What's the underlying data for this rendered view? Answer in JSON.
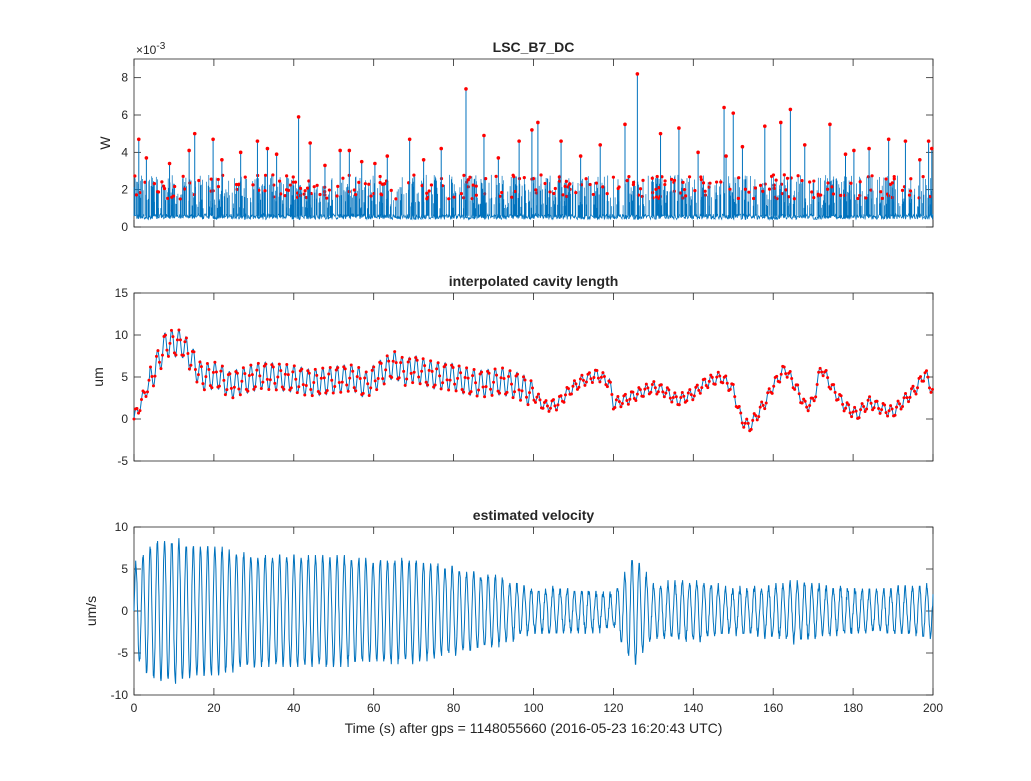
{
  "chart_data": [
    {
      "type": "line",
      "title": "LSC_B7_DC",
      "ylabel": "W",
      "xlabel": "",
      "exponent_label": "×10",
      "exponent_power": "-3",
      "xlim": [
        0,
        200
      ],
      "ylim": [
        0,
        9
      ],
      "yticks": [
        0,
        2,
        4,
        6,
        8
      ],
      "yticklabels": [
        "0",
        "2",
        "4",
        "6",
        "8"
      ],
      "colors": {
        "signal": "#0072BD",
        "peaks": "#FF0000"
      },
      "series": [
        {
          "style": "line",
          "baseline_range": [
            0.4,
            0.7
          ],
          "typical_spike_range": [
            1.0,
            2.8
          ]
        },
        {
          "style": "markers",
          "x": [
            1.2,
            3.1,
            8.9,
            13.8,
            15.2,
            19.8,
            22.0,
            26.7,
            30.9,
            33.4,
            35.7,
            41.2,
            44.1,
            47.8,
            51.6,
            53.9,
            57.0,
            60.3,
            63.4,
            69.0,
            72.5,
            76.9,
            83.1,
            87.6,
            91.2,
            96.4,
            99.6,
            101.1,
            106.9,
            111.8,
            116.7,
            122.9,
            126.0,
            131.8,
            136.4,
            141.2,
            147.7,
            148.2,
            150.0,
            152.3,
            157.9,
            161.9,
            164.3,
            167.9,
            174.2,
            178.1,
            180.2,
            184.0,
            188.9,
            193.1,
            196.7,
            198.9,
            199.7
          ],
          "y": [
            4.7,
            3.7,
            3.4,
            4.1,
            5.0,
            4.7,
            3.6,
            4.0,
            4.6,
            4.2,
            3.9,
            5.9,
            4.5,
            3.3,
            4.1,
            4.1,
            3.5,
            3.4,
            3.8,
            4.7,
            3.6,
            4.2,
            7.4,
            4.9,
            3.7,
            4.6,
            5.2,
            5.6,
            4.6,
            3.8,
            4.4,
            5.5,
            8.2,
            5.0,
            5.3,
            4.0,
            6.4,
            3.8,
            6.1,
            4.3,
            5.4,
            5.6,
            6.3,
            4.4,
            5.5,
            3.9,
            4.1,
            4.2,
            4.7,
            4.6,
            3.6,
            4.6,
            4.2
          ],
          "note_extra": "dense red markers also cover spikes between 1.5 and 2.8"
        }
      ]
    },
    {
      "type": "line",
      "title": "interpolated cavity length",
      "ylabel": "um",
      "xlabel": "",
      "xlim": [
        0,
        200
      ],
      "ylim": [
        -5,
        15
      ],
      "yticks": [
        -5,
        0,
        5,
        10,
        15
      ],
      "yticklabels": [
        "-5",
        "0",
        "5",
        "10",
        "15"
      ],
      "colors": {
        "line": "#0072BD",
        "markers": "#FF0000"
      },
      "series": [
        {
          "style": "line+markers",
          "envelope_x": [
            0,
            8,
            12,
            17,
            21,
            24,
            27,
            32,
            36,
            40,
            44,
            48,
            52,
            55,
            58,
            61,
            65,
            68,
            70,
            75,
            80,
            83,
            87,
            92,
            97,
            100,
            103,
            106,
            109,
            112,
            116,
            119,
            120,
            124,
            127,
            130,
            133,
            136,
            140,
            143,
            147,
            150,
            152,
            154,
            158,
            160,
            163,
            166,
            168,
            170,
            172,
            175,
            178,
            181,
            184,
            186,
            190,
            192,
            196,
            198,
            200
          ],
          "envelope_y": [
            0.0,
            9.0,
            9.0,
            5.0,
            5.2,
            4.0,
            4.5,
            5.2,
            5.0,
            4.8,
            4.3,
            4.5,
            4.8,
            4.9,
            4.0,
            5.2,
            6.5,
            5.5,
            6.0,
            5.2,
            5.0,
            4.5,
            4.2,
            4.5,
            3.8,
            2.8,
            1.5,
            1.8,
            3.4,
            4.5,
            5.3,
            4.3,
            1.8,
            2.5,
            3.2,
            3.8,
            3.3,
            2.2,
            3.0,
            4.3,
            5.0,
            3.5,
            0.0,
            -1.0,
            2.0,
            4.0,
            6.0,
            3.5,
            1.5,
            2.0,
            6.2,
            3.5,
            1.5,
            0.5,
            2.0,
            1.5,
            0.8,
            1.8,
            3.8,
            5.5,
            3.2
          ],
          "oscillation_period_s": 1.8
        }
      ]
    },
    {
      "type": "line",
      "title": "estimated velocity",
      "ylabel": "um/s",
      "xlabel": "Time (s) after gps = 1148055660 (2016-05-23 16:20:43 UTC)",
      "xlim": [
        0,
        200
      ],
      "ylim": [
        -10,
        10
      ],
      "xticks": [
        0,
        20,
        40,
        60,
        80,
        100,
        120,
        140,
        160,
        180,
        200
      ],
      "xticklabels": [
        "0",
        "20",
        "40",
        "60",
        "80",
        "100",
        "120",
        "140",
        "160",
        "180",
        "200"
      ],
      "yticks": [
        -10,
        -5,
        0,
        5,
        10
      ],
      "yticklabels": [
        "-10",
        "-5",
        "0",
        "5",
        "10"
      ],
      "colors": {
        "line": "#0072BD"
      },
      "series": [
        {
          "style": "line",
          "amplitude_envelope_x": [
            0,
            5,
            10,
            15,
            20,
            25,
            30,
            40,
            50,
            60,
            70,
            80,
            90,
            100,
            110,
            120,
            125,
            130,
            140,
            150,
            160,
            165,
            170,
            180,
            190,
            200
          ],
          "amplitude_envelope_y": [
            5.5,
            8.0,
            8.5,
            7.5,
            7.5,
            7.0,
            6.5,
            6.5,
            6.5,
            6.0,
            6.0,
            5.0,
            4.0,
            2.5,
            2.5,
            2.0,
            6.5,
            3.0,
            3.5,
            2.5,
            3.0,
            3.5,
            3.0,
            2.5,
            2.5,
            3.0
          ],
          "oscillation_period_s": 1.8
        }
      ]
    }
  ]
}
